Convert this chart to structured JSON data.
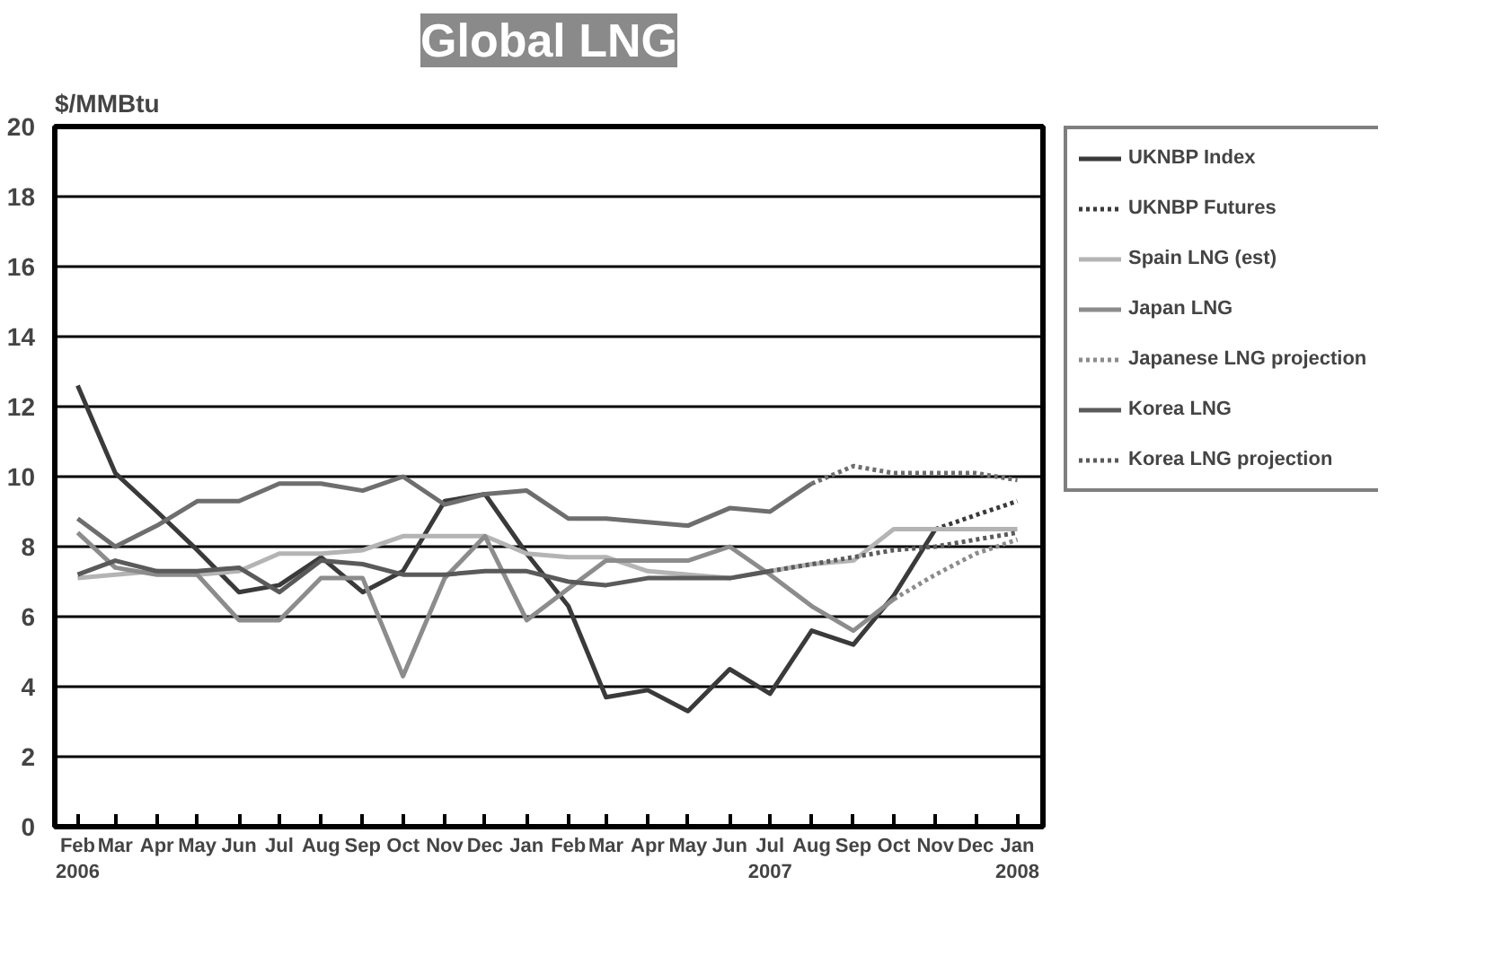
{
  "chart_data": {
    "type": "line",
    "title": "Global LNG",
    "ylabel": "$/MMBtu",
    "x": [
      "2006-02",
      "2006-03",
      "2006-04",
      "2006-05",
      "2006-06",
      "2006-07",
      "2006-08",
      "2006-09",
      "2006-10",
      "2006-11",
      "2006-12",
      "2007-01",
      "2007-02",
      "2007-03",
      "2007-04",
      "2007-05",
      "2007-06",
      "2007-07",
      "2007-08",
      "2007-09",
      "2007-10",
      "2007-11",
      "2007-12",
      "2008-01"
    ],
    "xlim": [
      "2006-01-15",
      "2008-01-20"
    ],
    "xticks": [
      {
        "value": "2006-02",
        "label": "Feb\n2006"
      },
      {
        "value": "2006-03",
        "label": "Mar"
      },
      {
        "value": "2006-04",
        "label": "Apr"
      },
      {
        "value": "2006-05",
        "label": "May"
      },
      {
        "value": "2006-06",
        "label": "Jun"
      },
      {
        "value": "2006-07",
        "label": "Jul"
      },
      {
        "value": "2006-08",
        "label": "Aug"
      },
      {
        "value": "2006-09",
        "label": "Sep"
      },
      {
        "value": "2006-10",
        "label": "Oct"
      },
      {
        "value": "2006-11",
        "label": "Nov"
      },
      {
        "value": "2006-12",
        "label": "Dec"
      },
      {
        "value": "2007-01",
        "label": "Jan"
      },
      {
        "value": "2007-02",
        "label": "Feb"
      },
      {
        "value": "2007-03",
        "label": "Mar"
      },
      {
        "value": "2007-04",
        "label": "Apr"
      },
      {
        "value": "2007-05",
        "label": "May"
      },
      {
        "value": "2007-06",
        "label": "Jun"
      },
      {
        "value": "2007-07",
        "label": "Jul\n2007"
      },
      {
        "value": "2007-08",
        "label": "Aug"
      },
      {
        "value": "2007-09",
        "label": "Sep"
      },
      {
        "value": "2007-10",
        "label": "Oct"
      },
      {
        "value": "2007-11",
        "label": "Nov"
      },
      {
        "value": "2007-12",
        "label": "Dec"
      },
      {
        "value": "2008-01",
        "label": "Jan\n2008"
      }
    ],
    "ylim": [
      0,
      20
    ],
    "yticks": [
      0,
      2,
      4,
      6,
      8,
      10,
      12,
      14,
      16,
      18,
      20
    ],
    "grid": "y",
    "legend": "right",
    "series": [
      {
        "name": "UKNBP Index",
        "color": "#3a3a3a",
        "line_style": "solid",
        "values": [
          12.6,
          10.1,
          9.0,
          7.9,
          6.7,
          6.9,
          7.7,
          6.7,
          7.3,
          9.3,
          9.5,
          7.8,
          6.3,
          3.7,
          3.9,
          3.3,
          4.5,
          3.8,
          5.6,
          5.2,
          6.6,
          8.5,
          null,
          null
        ]
      },
      {
        "name": "UKNBP Futures",
        "color": "#3a3a3a",
        "line_style": "dotted",
        "values": [
          null,
          null,
          null,
          null,
          null,
          null,
          null,
          null,
          null,
          null,
          null,
          null,
          null,
          null,
          null,
          null,
          null,
          null,
          null,
          null,
          null,
          8.5,
          8.9,
          9.3
        ]
      },
      {
        "color": "#6e6e6e",
        "line_style": "solid",
        "values": [
          8.8,
          8.0,
          8.6,
          9.3,
          9.3,
          9.8,
          9.8,
          9.6,
          10.0,
          9.2,
          9.5,
          9.6,
          8.8,
          8.8,
          8.7,
          8.6,
          9.1,
          9.0,
          9.8,
          null,
          null,
          null,
          null,
          null
        ]
      },
      {
        "color": "#6e6e6e",
        "line_style": "dotted",
        "values": [
          null,
          null,
          null,
          null,
          null,
          null,
          null,
          null,
          null,
          null,
          null,
          null,
          null,
          null,
          null,
          null,
          null,
          null,
          9.8,
          10.3,
          10.1,
          10.1,
          10.1,
          9.9
        ]
      },
      {
        "name": "Spain LNG (est)",
        "color": "#b4b4b4",
        "line_style": "solid",
        "values": [
          7.1,
          7.2,
          7.3,
          7.2,
          7.3,
          7.8,
          7.8,
          7.9,
          8.3,
          8.3,
          8.3,
          7.8,
          7.7,
          7.7,
          7.3,
          7.2,
          7.1,
          7.3,
          7.5,
          7.6,
          8.5,
          8.5,
          8.5,
          8.5
        ]
      },
      {
        "name": "Japan LNG",
        "color": "#8c8c8c",
        "line_style": "solid",
        "values": [
          8.4,
          7.4,
          7.2,
          7.2,
          5.9,
          5.9,
          7.1,
          7.1,
          4.3,
          7.1,
          8.3,
          5.9,
          6.8,
          7.6,
          7.6,
          7.6,
          8.0,
          7.2,
          6.3,
          5.6,
          6.5,
          null,
          null,
          null
        ]
      },
      {
        "name": "Japanese LNG projection",
        "color": "#8c8c8c",
        "line_style": "dotted",
        "values": [
          null,
          null,
          null,
          null,
          null,
          null,
          null,
          null,
          null,
          null,
          null,
          null,
          null,
          null,
          null,
          null,
          null,
          null,
          null,
          null,
          6.5,
          7.2,
          7.8,
          8.2
        ]
      },
      {
        "name": "Korea LNG",
        "color": "#5a5a5a",
        "line_style": "solid",
        "values": [
          7.2,
          7.6,
          7.3,
          7.3,
          7.4,
          6.7,
          7.6,
          7.5,
          7.2,
          7.2,
          7.3,
          7.3,
          7.0,
          6.9,
          7.1,
          7.1,
          7.1,
          7.3,
          null,
          null,
          null,
          null,
          null,
          null
        ]
      },
      {
        "name": "Korea LNG projection",
        "color": "#5a5a5a",
        "line_style": "dotted",
        "values": [
          null,
          null,
          null,
          null,
          null,
          null,
          null,
          null,
          null,
          null,
          null,
          null,
          null,
          null,
          null,
          null,
          null,
          7.3,
          7.5,
          7.7,
          7.9,
          8.0,
          8.2,
          8.4
        ]
      }
    ]
  }
}
